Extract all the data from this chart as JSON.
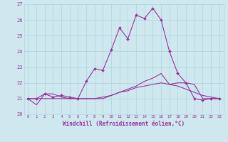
{
  "xlabel": "Windchill (Refroidissement éolien,°C)",
  "bg_color": "#cfe8ef",
  "line_color": "#993399",
  "grid_color": "#b0d8e0",
  "x_values": [
    0,
    1,
    2,
    3,
    4,
    5,
    6,
    7,
    8,
    9,
    10,
    11,
    12,
    13,
    14,
    15,
    16,
    17,
    18,
    19,
    20,
    21,
    22,
    23
  ],
  "line1": [
    21.0,
    21.0,
    21.3,
    21.1,
    21.2,
    21.1,
    21.0,
    22.1,
    22.9,
    22.8,
    24.1,
    25.5,
    24.8,
    26.3,
    26.1,
    26.75,
    26.0,
    24.0,
    22.6,
    22.0,
    21.0,
    20.9,
    21.0,
    21.0
  ],
  "line2": [
    21.0,
    20.6,
    21.3,
    21.3,
    21.1,
    21.0,
    21.0,
    21.0,
    21.0,
    21.0,
    21.2,
    21.4,
    21.6,
    21.8,
    22.1,
    22.3,
    22.6,
    21.9,
    22.0,
    22.0,
    21.9,
    21.0,
    21.0,
    21.0
  ],
  "line3": [
    21.0,
    21.0,
    21.0,
    21.0,
    21.0,
    21.0,
    21.0,
    21.0,
    21.0,
    21.1,
    21.2,
    21.4,
    21.5,
    21.7,
    21.8,
    21.9,
    22.0,
    21.9,
    21.8,
    21.6,
    21.4,
    21.2,
    21.1,
    21.0
  ],
  "ylim": [
    20.0,
    27.0
  ],
  "yticks": [
    20,
    21,
    22,
    23,
    24,
    25,
    26,
    27
  ],
  "xlim": [
    -0.5,
    23.5
  ]
}
